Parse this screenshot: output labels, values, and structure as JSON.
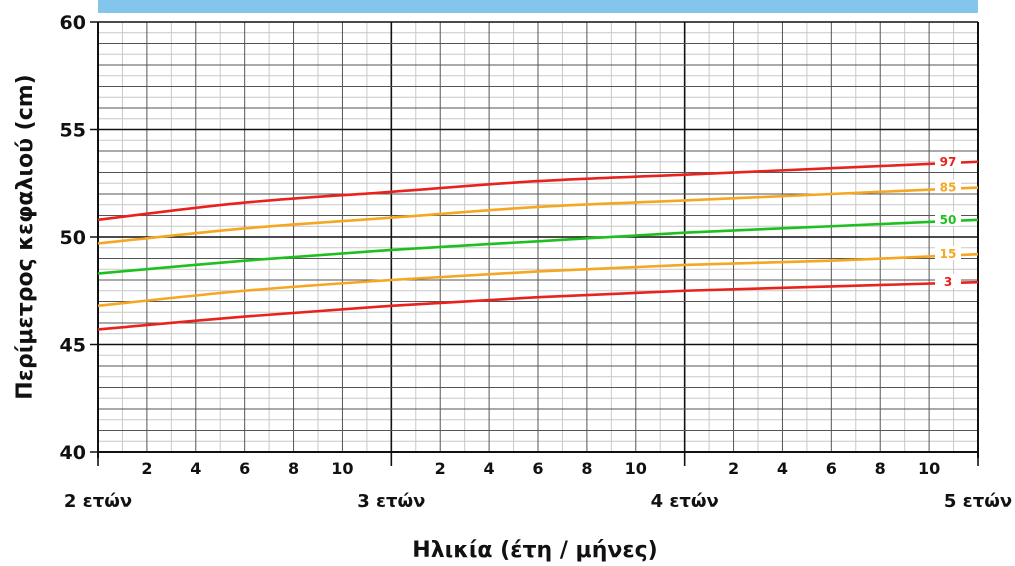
{
  "chart_data": {
    "type": "line",
    "title": "",
    "xlabel": "Ηλικία (έτη / μήνες)",
    "ylabel": "Περίμετρος κεφαλιού (cm)",
    "xlim": [
      24,
      60
    ],
    "ylim": [
      40,
      60
    ],
    "y_ticks": [
      40,
      45,
      50,
      55,
      60
    ],
    "x_year_ticks": [
      {
        "x": 24,
        "label": "2 ετών"
      },
      {
        "x": 36,
        "label": "3 ετών"
      },
      {
        "x": 48,
        "label": "4 ετών"
      },
      {
        "x": 60,
        "label": "5 ετών"
      }
    ],
    "x_month_ticks": [
      {
        "x": 26,
        "label": "2"
      },
      {
        "x": 28,
        "label": "4"
      },
      {
        "x": 30,
        "label": "6"
      },
      {
        "x": 32,
        "label": "8"
      },
      {
        "x": 34,
        "label": "10"
      },
      {
        "x": 38,
        "label": "2"
      },
      {
        "x": 40,
        "label": "4"
      },
      {
        "x": 42,
        "label": "6"
      },
      {
        "x": 44,
        "label": "8"
      },
      {
        "x": 46,
        "label": "10"
      },
      {
        "x": 50,
        "label": "2"
      },
      {
        "x": 52,
        "label": "4"
      },
      {
        "x": 54,
        "label": "6"
      },
      {
        "x": 56,
        "label": "8"
      },
      {
        "x": 58,
        "label": "10"
      }
    ],
    "grid": true,
    "x": [
      24,
      30,
      36,
      42,
      48,
      54,
      60
    ],
    "series": [
      {
        "name": "97",
        "color": "#e8231e",
        "values": [
          50.8,
          51.6,
          52.1,
          52.6,
          52.9,
          53.2,
          53.5
        ]
      },
      {
        "name": "85",
        "color": "#f5a623",
        "values": [
          49.7,
          50.4,
          50.9,
          51.4,
          51.7,
          52.0,
          52.3
        ]
      },
      {
        "name": "50",
        "color": "#1fbf1f",
        "values": [
          48.3,
          48.9,
          49.4,
          49.8,
          50.2,
          50.5,
          50.8
        ]
      },
      {
        "name": "15",
        "color": "#f5a623",
        "values": [
          46.8,
          47.5,
          48.0,
          48.4,
          48.7,
          48.9,
          49.2
        ]
      },
      {
        "name": "3",
        "color": "#e8231e",
        "values": [
          45.7,
          46.3,
          46.8,
          47.2,
          47.5,
          47.7,
          47.9
        ]
      }
    ]
  },
  "header_band_color": "#84c5ec"
}
